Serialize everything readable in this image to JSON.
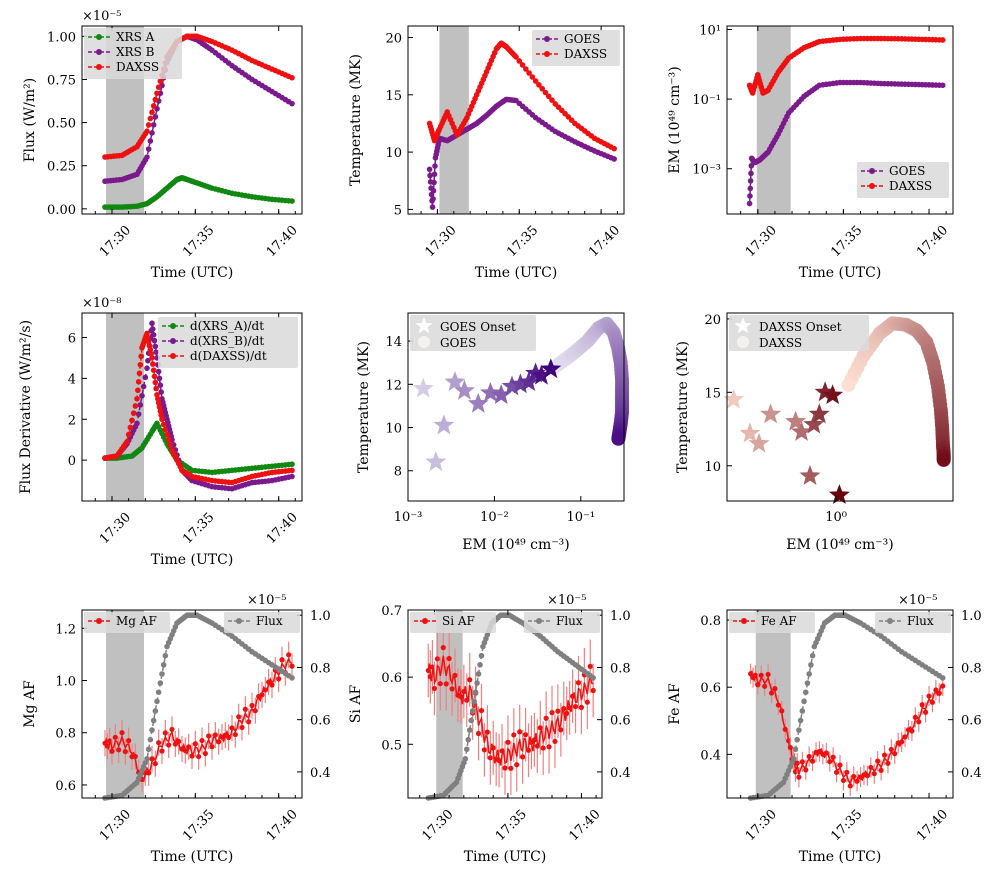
{
  "figure": {
    "time_ticks": [
      "17:30",
      "17:35",
      "17:40"
    ],
    "time_label": "Time (UTC)"
  },
  "chart_data": [
    {
      "id": "p1",
      "type": "line",
      "ylabel": "Flux (W/m²)",
      "xlabel": "Time (UTC)",
      "multiplier": "×10⁻⁵",
      "xlim": [
        17.47,
        17.69
      ],
      "ylim": [
        -0.03,
        1.06
      ],
      "yticks": [
        "0.00",
        "0.25",
        "0.50",
        "0.75",
        "1.00"
      ],
      "shade": [
        17.494,
        17.532
      ],
      "legend": "top-left",
      "series": [
        {
          "name": "XRS A",
          "color": "#118811",
          "x": [
            17.493,
            17.51,
            17.525,
            17.535,
            17.545,
            17.555,
            17.565,
            17.57,
            17.575,
            17.585,
            17.6,
            17.62,
            17.64,
            17.66,
            17.68
          ],
          "y": [
            0.01,
            0.01,
            0.015,
            0.03,
            0.07,
            0.12,
            0.17,
            0.18,
            0.17,
            0.15,
            0.12,
            0.09,
            0.07,
            0.055,
            0.045
          ]
        },
        {
          "name": "XRS B",
          "color": "#7a1a8c",
          "x": [
            17.493,
            17.51,
            17.525,
            17.535,
            17.545,
            17.555,
            17.565,
            17.575,
            17.585,
            17.6,
            17.62,
            17.64,
            17.66,
            17.68
          ],
          "y": [
            0.16,
            0.17,
            0.2,
            0.3,
            0.58,
            0.85,
            0.97,
            1.0,
            0.98,
            0.92,
            0.83,
            0.75,
            0.68,
            0.61
          ]
        },
        {
          "name": "DAXSS",
          "color": "#ee1111",
          "x": [
            17.493,
            17.51,
            17.525,
            17.535,
            17.545,
            17.555,
            17.565,
            17.575,
            17.585,
            17.6,
            17.62,
            17.64,
            17.66,
            17.68
          ],
          "y": [
            0.3,
            0.31,
            0.36,
            0.45,
            0.67,
            0.88,
            0.97,
            1.0,
            1.0,
            0.97,
            0.92,
            0.86,
            0.81,
            0.76
          ]
        }
      ]
    },
    {
      "id": "p2",
      "type": "line",
      "ylabel": "Temperature (MK)",
      "xlabel": "Time (UTC)",
      "xlim": [
        17.47,
        17.69
      ],
      "ylim": [
        4.6,
        21
      ],
      "yticks": [
        "5",
        "10",
        "15",
        "20"
      ],
      "shade": [
        17.502,
        17.532
      ],
      "legend": "top-right",
      "series": [
        {
          "name": "GOES",
          "color": "#7a1a8c",
          "x": [
            17.492,
            17.495,
            17.498,
            17.502,
            17.51,
            17.52,
            17.53,
            17.54,
            17.55,
            17.56,
            17.57,
            17.58,
            17.6,
            17.62,
            17.64,
            17.66,
            17.68
          ],
          "y": [
            8.5,
            5.2,
            9.5,
            11.2,
            11.0,
            11.5,
            12.0,
            12.5,
            13.2,
            14.0,
            14.6,
            14.5,
            13.0,
            11.8,
            10.9,
            10.1,
            9.4
          ]
        },
        {
          "name": "DAXSS",
          "color": "#ee1111",
          "x": [
            17.492,
            17.497,
            17.502,
            17.51,
            17.52,
            17.53,
            17.54,
            17.55,
            17.56,
            17.565,
            17.57,
            17.58,
            17.6,
            17.62,
            17.64,
            17.66,
            17.68
          ],
          "y": [
            12.5,
            11.0,
            12.0,
            13.5,
            11.5,
            13.0,
            15.0,
            17.0,
            19.0,
            19.5,
            19.2,
            18.3,
            16.2,
            14.2,
            12.5,
            11.2,
            10.3
          ]
        }
      ]
    },
    {
      "id": "p3",
      "type": "line",
      "ylabel": "EM (10⁴⁹ cm⁻³)",
      "xlabel": "Time (UTC)",
      "xlim": [
        17.47,
        17.69
      ],
      "ylim_log": [
        -4.3,
        1.1
      ],
      "ytick_exps": [
        -3,
        -1,
        1
      ],
      "yticks": [
        "10⁻³",
        "10⁻¹",
        "10¹"
      ],
      "shade": [
        17.499,
        17.532
      ],
      "legend": "bottom-right",
      "series": [
        {
          "name": "GOES",
          "color": "#7a1a8c",
          "x": [
            17.492,
            17.494,
            17.497,
            17.502,
            17.51,
            17.52,
            17.53,
            17.545,
            17.56,
            17.58,
            17.6,
            17.62,
            17.64,
            17.66,
            17.68
          ],
          "y": [
            0.0001,
            0.002,
            0.0015,
            0.0018,
            0.003,
            0.01,
            0.04,
            0.12,
            0.25,
            0.3,
            0.3,
            0.28,
            0.27,
            0.26,
            0.25
          ]
        },
        {
          "name": "DAXSS",
          "color": "#ee1111",
          "x": [
            17.492,
            17.495,
            17.5,
            17.505,
            17.51,
            17.52,
            17.53,
            17.545,
            17.56,
            17.58,
            17.6,
            17.62,
            17.64,
            17.66,
            17.68
          ],
          "y": [
            0.25,
            0.15,
            0.5,
            0.15,
            0.18,
            0.6,
            1.5,
            3.0,
            4.5,
            5.2,
            5.5,
            5.5,
            5.4,
            5.2,
            5.0
          ]
        }
      ]
    },
    {
      "id": "p4",
      "type": "line",
      "ylabel": "Flux Derivative (W/m²/s)",
      "xlabel": "Time (UTC)",
      "multiplier": "×10⁻⁸",
      "xlim": [
        17.47,
        17.69
      ],
      "ylim": [
        -2,
        7.2
      ],
      "yticks": [
        "0",
        "2",
        "4",
        "6"
      ],
      "shade": [
        17.494,
        17.532
      ],
      "legend": "top-right",
      "series": [
        {
          "name": "d(XRS_A)/dt",
          "color": "#118811",
          "x": [
            17.493,
            17.505,
            17.52,
            17.53,
            17.54,
            17.545,
            17.555,
            17.565,
            17.58,
            17.6,
            17.62,
            17.64,
            17.66,
            17.68
          ],
          "y": [
            0.1,
            0.1,
            0.2,
            0.6,
            1.4,
            1.8,
            0.8,
            0.0,
            -0.5,
            -0.6,
            -0.5,
            -0.4,
            -0.3,
            -0.2
          ]
        },
        {
          "name": "d(XRS_B)/dt",
          "color": "#7a1a8c",
          "x": [
            17.493,
            17.505,
            17.515,
            17.525,
            17.535,
            17.54,
            17.545,
            17.55,
            17.555,
            17.56,
            17.57,
            17.58,
            17.6,
            17.62,
            17.64,
            17.66,
            17.68
          ],
          "y": [
            0.1,
            0.2,
            0.8,
            1.8,
            4.5,
            6.7,
            5.0,
            3.0,
            2.0,
            1.0,
            -0.5,
            -1.0,
            -1.3,
            -1.4,
            -1.1,
            -1.0,
            -0.8
          ]
        },
        {
          "name": "d(DAXSS)/dt",
          "color": "#ee1111",
          "x": [
            17.493,
            17.505,
            17.515,
            17.525,
            17.53,
            17.535,
            17.54,
            17.545,
            17.55,
            17.56,
            17.57,
            17.58,
            17.6,
            17.62,
            17.64,
            17.66,
            17.68
          ],
          "y": [
            0.1,
            0.2,
            0.9,
            3.0,
            5.5,
            6.2,
            5.0,
            3.2,
            2.0,
            0.5,
            -0.5,
            -0.8,
            -1.0,
            -1.1,
            -0.8,
            -0.6,
            -0.5
          ]
        }
      ]
    },
    {
      "id": "p5",
      "type": "scatter",
      "ylabel": "Temperature (MK)",
      "xlabel": "EM (10⁴⁹ cm⁻³)",
      "xlim_log": [
        -3,
        -0.5
      ],
      "xtick_exps": [
        -3,
        -2,
        -1
      ],
      "xticks": [
        "10⁻³",
        "10⁻²",
        "10⁻¹"
      ],
      "ylim": [
        6.6,
        15.3
      ],
      "yticks": [
        "8",
        "10",
        "12",
        "14"
      ],
      "legend": "top-left",
      "colormap": "purples",
      "series": [
        {
          "name": "GOES Onset",
          "marker": "star",
          "x": [
            0.0015,
            0.0021,
            0.0026,
            0.0035,
            0.0045,
            0.0065,
            0.009,
            0.012,
            0.016,
            0.02,
            0.025,
            0.03,
            0.035,
            0.045
          ],
          "y": [
            11.8,
            8.4,
            10.1,
            12.1,
            11.7,
            11.1,
            11.6,
            11.5,
            11.9,
            12.0,
            12.1,
            12.5,
            12.4,
            12.7
          ]
        },
        {
          "name": "GOES",
          "marker": "circle",
          "x": [
            0.05,
            0.08,
            0.12,
            0.16,
            0.2,
            0.24,
            0.27,
            0.29,
            0.3,
            0.3,
            0.3,
            0.29,
            0.28,
            0.27
          ],
          "y": [
            12.8,
            13.4,
            14.0,
            14.6,
            14.8,
            14.4,
            13.7,
            13.0,
            12.2,
            11.4,
            10.7,
            10.2,
            9.8,
            9.4
          ]
        }
      ]
    },
    {
      "id": "p6",
      "type": "scatter",
      "ylabel": "Temperature (MK)",
      "xlabel": "EM (10⁴⁹ cm⁻³)",
      "xlim_log": [
        -0.7,
        0.75
      ],
      "xtick_exps": [
        0
      ],
      "xticks": [
        "10⁰"
      ],
      "ylim": [
        7.6,
        20.4
      ],
      "yticks": [
        "10",
        "15",
        "20"
      ],
      "legend": "top-left",
      "colormap": "reds",
      "series": [
        {
          "name": "DAXSS Onset",
          "marker": "star",
          "x": [
            0.22,
            0.28,
            0.32,
            0.38,
            0.55,
            0.6,
            0.68,
            0.72,
            0.78,
            0.85,
            0.95,
            1.05
          ],
          "y": [
            14.5,
            12.2,
            11.5,
            13.5,
            13.0,
            12.3,
            9.3,
            12.8,
            13.5,
            15.0,
            14.8,
            8.0
          ]
        },
        {
          "name": "DAXSS",
          "marker": "circle",
          "x": [
            1.2,
            1.5,
            1.9,
            2.3,
            2.8,
            3.3,
            3.8,
            4.2,
            4.5,
            4.7,
            4.8,
            4.85,
            4.9,
            4.9
          ],
          "y": [
            15.5,
            17.5,
            19.0,
            19.7,
            19.6,
            19.2,
            18.4,
            17.0,
            15.4,
            13.8,
            12.5,
            11.4,
            10.8,
            10.3
          ]
        }
      ]
    },
    {
      "id": "p7",
      "type": "line",
      "ylabel": "Mg AF",
      "ylabel_right": "",
      "xlabel": "Time (UTC)",
      "multiplier": "×10⁻⁵",
      "xlim": [
        17.47,
        17.69
      ],
      "ylim": [
        0.55,
        1.27
      ],
      "yticks": [
        "0.6",
        "0.8",
        "1.0",
        "1.2"
      ],
      "ylim_right": [
        0.3,
        1.02
      ],
      "yticks_right": [
        "0.4",
        "0.6",
        "0.8",
        "1.0"
      ],
      "shade": [
        17.494,
        17.532
      ],
      "legend_left": "top-left",
      "legend_right": "top-right",
      "series": [
        {
          "name": "Mg AF",
          "color": "#ee1111",
          "axis": "left",
          "err": 0.05,
          "x": [
            17.493,
            17.5,
            17.51,
            17.52,
            17.53,
            17.54,
            17.55,
            17.56,
            17.57,
            17.58,
            17.59,
            17.6,
            17.61,
            17.62,
            17.63,
            17.64,
            17.65,
            17.66,
            17.67,
            17.68
          ],
          "y": [
            0.76,
            0.75,
            0.77,
            0.73,
            0.62,
            0.68,
            0.76,
            0.79,
            0.74,
            0.73,
            0.74,
            0.77,
            0.78,
            0.8,
            0.85,
            0.88,
            0.95,
            1.0,
            1.05,
            1.08
          ]
        },
        {
          "name": "Flux",
          "color": "#808080",
          "axis": "right",
          "x": [
            17.493,
            17.51,
            17.525,
            17.535,
            17.545,
            17.555,
            17.565,
            17.575,
            17.585,
            17.6,
            17.62,
            17.64,
            17.66,
            17.68
          ],
          "y": [
            0.3,
            0.31,
            0.36,
            0.45,
            0.67,
            0.88,
            0.97,
            1.0,
            1.0,
            0.97,
            0.92,
            0.86,
            0.81,
            0.76
          ]
        }
      ]
    },
    {
      "id": "p8",
      "type": "line",
      "ylabel": "Si AF",
      "xlabel": "Time (UTC)",
      "multiplier": "×10⁻⁵",
      "xlim": [
        17.47,
        17.69
      ],
      "ylim": [
        0.42,
        0.7
      ],
      "yticks": [
        "0.5",
        "0.6",
        "0.7"
      ],
      "ylim_right": [
        0.3,
        1.02
      ],
      "yticks_right": [
        "0.4",
        "0.6",
        "0.8",
        "1.0"
      ],
      "shade": [
        17.502,
        17.532
      ],
      "series": [
        {
          "name": "Si AF",
          "color": "#ee1111",
          "axis": "left",
          "err": 0.04,
          "x": [
            17.493,
            17.5,
            17.51,
            17.52,
            17.53,
            17.54,
            17.55,
            17.56,
            17.57,
            17.58,
            17.59,
            17.6,
            17.61,
            17.62,
            17.63,
            17.64,
            17.65,
            17.66,
            17.67,
            17.68
          ],
          "y": [
            0.61,
            0.6,
            0.62,
            0.6,
            0.57,
            0.58,
            0.54,
            0.5,
            0.48,
            0.48,
            0.49,
            0.5,
            0.5,
            0.51,
            0.52,
            0.53,
            0.55,
            0.57,
            0.58,
            0.6
          ]
        },
        {
          "name": "Flux",
          "color": "#808080",
          "axis": "right",
          "x": [
            17.493,
            17.51,
            17.525,
            17.535,
            17.545,
            17.555,
            17.565,
            17.575,
            17.585,
            17.6,
            17.62,
            17.64,
            17.66,
            17.68
          ],
          "y": [
            0.3,
            0.31,
            0.36,
            0.45,
            0.67,
            0.88,
            0.97,
            1.0,
            1.0,
            0.97,
            0.92,
            0.86,
            0.81,
            0.76
          ]
        }
      ]
    },
    {
      "id": "p9",
      "type": "line",
      "ylabel": "Fe AF",
      "xlabel": "Time (UTC)",
      "multiplier": "×10⁻⁵",
      "xlim": [
        17.47,
        17.69
      ],
      "ylim": [
        0.27,
        0.83
      ],
      "yticks": [
        "0.4",
        "0.6",
        "0.8"
      ],
      "ylim_right": [
        0.3,
        1.02
      ],
      "yticks_right": [
        "0.4",
        "0.6",
        "0.8",
        "1.0"
      ],
      "shade": [
        17.498,
        17.532
      ],
      "series": [
        {
          "name": "Fe AF",
          "color": "#ee1111",
          "axis": "left",
          "err": 0.03,
          "x": [
            17.493,
            17.5,
            17.51,
            17.52,
            17.53,
            17.535,
            17.54,
            17.55,
            17.56,
            17.57,
            17.58,
            17.59,
            17.6,
            17.61,
            17.62,
            17.63,
            17.64,
            17.65,
            17.66,
            17.67,
            17.68
          ],
          "y": [
            0.64,
            0.62,
            0.62,
            0.56,
            0.44,
            0.37,
            0.35,
            0.38,
            0.41,
            0.39,
            0.35,
            0.32,
            0.33,
            0.35,
            0.37,
            0.4,
            0.44,
            0.48,
            0.53,
            0.57,
            0.6
          ]
        },
        {
          "name": "Flux",
          "color": "#808080",
          "axis": "right",
          "x": [
            17.493,
            17.51,
            17.525,
            17.535,
            17.545,
            17.555,
            17.565,
            17.575,
            17.585,
            17.6,
            17.62,
            17.64,
            17.66,
            17.68
          ],
          "y": [
            0.3,
            0.31,
            0.36,
            0.45,
            0.67,
            0.88,
            0.97,
            1.0,
            1.0,
            0.97,
            0.92,
            0.86,
            0.81,
            0.76
          ]
        }
      ]
    }
  ]
}
